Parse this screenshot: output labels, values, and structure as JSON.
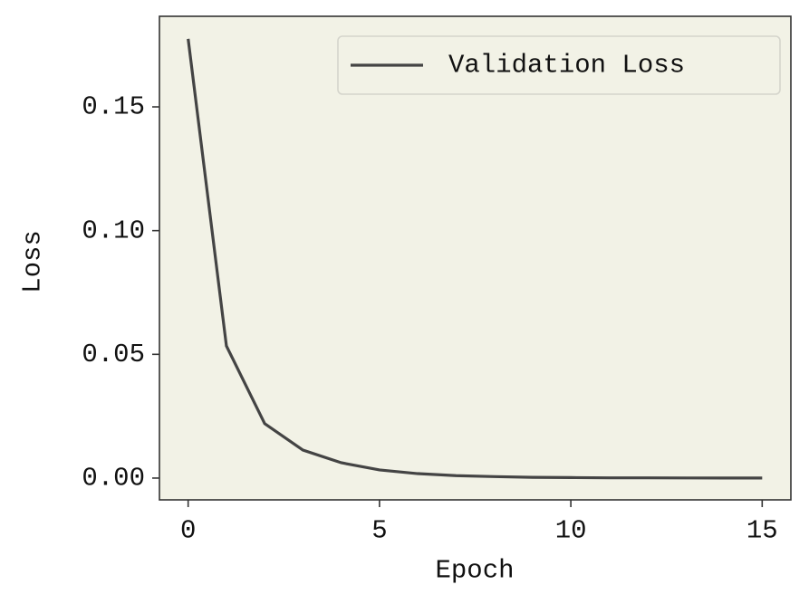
{
  "chart_data": {
    "type": "line",
    "x_label": "Epoch",
    "y_label": "Loss",
    "x": [
      0,
      1,
      2,
      3,
      4,
      5,
      6,
      7,
      8,
      9,
      10,
      11,
      12,
      13,
      14,
      15
    ],
    "series": [
      {
        "name": "Validation Loss",
        "color": "#444444",
        "values": [
          0.1775,
          0.0534,
          0.022,
          0.0113,
          0.0062,
          0.0033,
          0.0018,
          0.001,
          0.0006,
          0.0003,
          0.0002,
          0.0001,
          0.0001,
          5e-05,
          3e-05,
          2e-05
        ]
      }
    ],
    "xlim": [
      -0.75,
      15.75
    ],
    "ylim": [
      -0.0088,
      0.1866
    ],
    "xticks": [
      0,
      5,
      10,
      15
    ],
    "yticks": [
      {
        "value": 0,
        "label": "0.00"
      },
      {
        "value": 0.05,
        "label": "0.05"
      },
      {
        "value": 0.1,
        "label": "0.10"
      },
      {
        "value": 0.15,
        "label": "0.15"
      }
    ],
    "grid": false,
    "legend": "upper right",
    "background": "#f2f2e6"
  }
}
